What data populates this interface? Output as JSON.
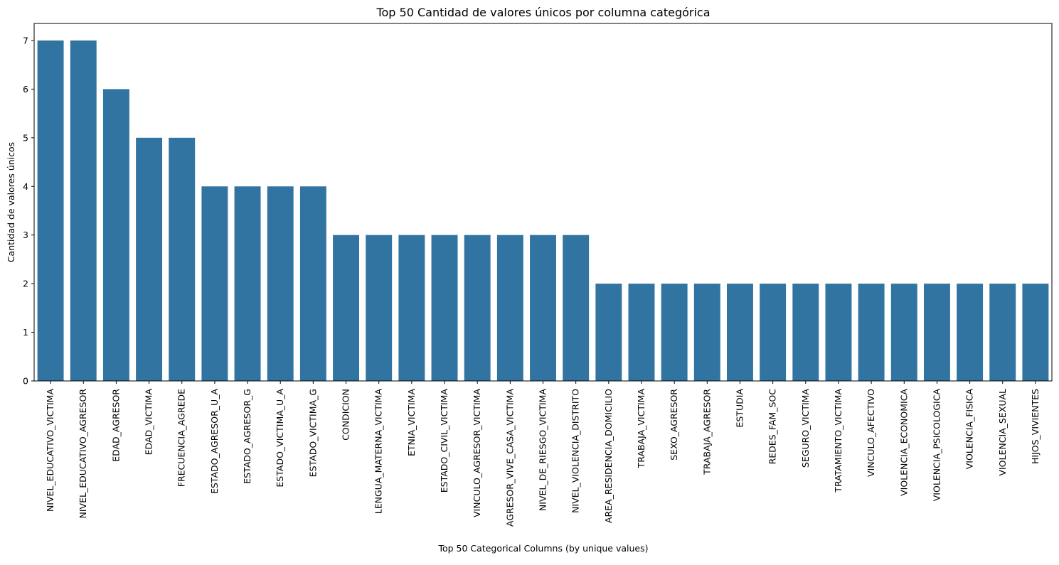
{
  "chart_data": {
    "type": "bar",
    "title": "Top 50 Cantidad de valores únicos por columna categórica",
    "xlabel": "Top 50 Categorical Columns (by unique values)",
    "ylabel": "Cantidad de valores únicos",
    "ylim": [
      0,
      7.35
    ],
    "yticks": [
      "0",
      "1",
      "2",
      "3",
      "4",
      "5",
      "6",
      "7"
    ],
    "grid": false,
    "bar_color": "#3274a1",
    "categories": [
      "NIVEL_EDUCATIVO_VICTIMA",
      "NIVEL_EDUCATIVO_AGRESOR",
      "EDAD_AGRESOR",
      "EDAD_VICTIMA",
      "FRECUENCIA_AGREDE",
      "ESTADO_AGRESOR_U_A",
      "ESTADO_AGRESOR_G",
      "ESTADO_VICTIMA_U_A",
      "ESTADO_VICTIMA_G",
      "CONDICION",
      "LENGUA_MATERNA_VICTIMA",
      "ETNIA_VICTIMA",
      "ESTADO_CIVIL_VICTIMA",
      "VINCULO_AGRESOR_VICTIMA",
      "AGRESOR_VIVE_CASA_VICTIMA",
      "NIVEL_DE_RIESGO_VICTIMA",
      "NIVEL_VIOLENCIA_DISTRITO",
      "AREA_RESIDENCIA_DOMICILIO",
      "TRABAJA_VICTIMA",
      "SEXO_AGRESOR",
      "TRABAJA_AGRESOR",
      "ESTUDIA",
      "REDES_FAM_SOC",
      "SEGURO_VICTIMA",
      "TRATAMIENTO_VICTIMA",
      "VINCULO_AFECTIVO",
      "VIOLENCIA_ECONOMICA",
      "VIOLENCIA_PSICOLOGICA",
      "VIOLENCIA_FISICA",
      "VIOLENCIA_SEXUAL",
      "HIJOS_VIVIENTES"
    ],
    "values": [
      7,
      7,
      6,
      5,
      5,
      4,
      4,
      4,
      4,
      3,
      3,
      3,
      3,
      3,
      3,
      3,
      3,
      2,
      2,
      2,
      2,
      2,
      2,
      2,
      2,
      2,
      2,
      2,
      2,
      2,
      2
    ]
  }
}
